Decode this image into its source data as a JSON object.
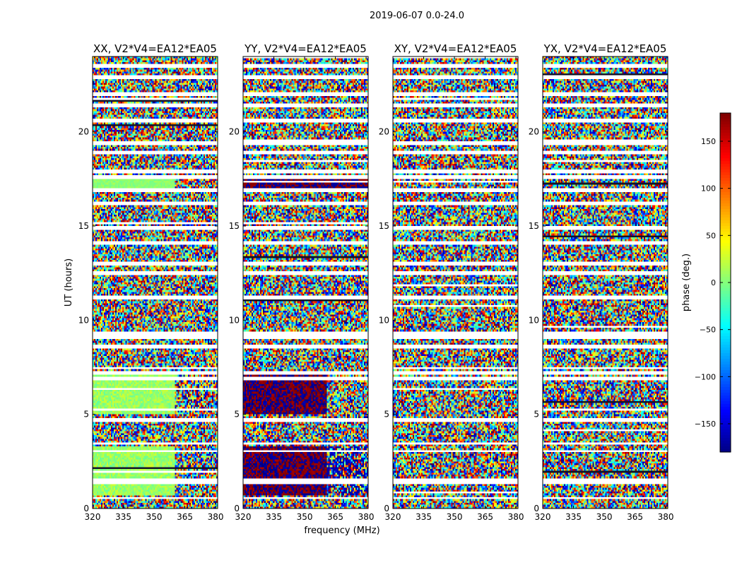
{
  "figure": {
    "suptitle": "2019-06-07 0.0-24.0",
    "xlabel": "frequency (MHz)",
    "ylabel": "UT (hours)",
    "colorbar_label": "phase (deg.)",
    "colorbar_ticks": [
      150,
      100,
      50,
      0,
      -50,
      -100,
      -150
    ],
    "colorbar_range": [
      -180,
      180
    ],
    "colormap": "jet"
  },
  "chart_data": [
    {
      "type": "heatmap",
      "title": "XX, V2*V4=EA12*EA05",
      "x_range": [
        320,
        381
      ],
      "y_range": [
        0,
        24
      ],
      "x_ticks": [
        320,
        335,
        350,
        365,
        380
      ],
      "y_ticks": [
        0,
        5,
        10,
        15,
        20
      ],
      "zlim": [
        -180,
        180
      ],
      "pattern": "XX"
    },
    {
      "type": "heatmap",
      "title": "YY, V2*V4=EA12*EA05",
      "x_range": [
        320,
        381
      ],
      "y_range": [
        0,
        24
      ],
      "x_ticks": [
        320,
        335,
        350,
        365,
        380
      ],
      "y_ticks": [
        0,
        5,
        10,
        15,
        20
      ],
      "zlim": [
        -180,
        180
      ],
      "pattern": "YY"
    },
    {
      "type": "heatmap",
      "title": "XY, V2*V4=EA12*EA05",
      "x_range": [
        320,
        381
      ],
      "y_range": [
        0,
        24
      ],
      "x_ticks": [
        320,
        335,
        350,
        365,
        380
      ],
      "y_ticks": [
        0,
        5,
        10,
        15,
        20
      ],
      "zlim": [
        -180,
        180
      ],
      "pattern": "XY"
    },
    {
      "type": "heatmap",
      "title": "YX, V2*V4=EA12*EA05",
      "x_range": [
        320,
        381
      ],
      "y_range": [
        0,
        24
      ],
      "x_ticks": [
        320,
        335,
        350,
        365,
        380
      ],
      "y_ticks": [
        0,
        5,
        10,
        15,
        20
      ],
      "zlim": [
        -180,
        180
      ],
      "pattern": "YX"
    }
  ]
}
